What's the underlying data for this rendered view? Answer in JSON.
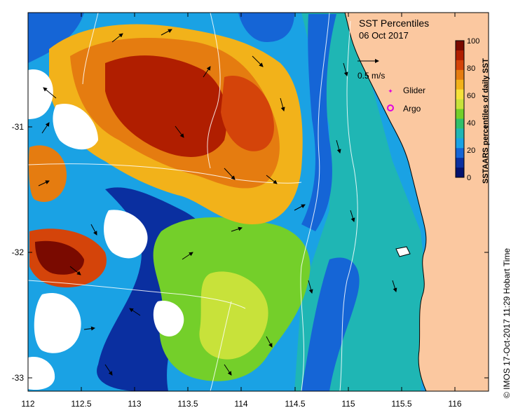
{
  "title": "SST Percentiles",
  "date": "06 Oct 2017",
  "credit": "© IMOS 17-Oct-2017 11:29 Hobart Time",
  "axes": {
    "lon_ticks": [
      "112",
      "112.5",
      "113",
      "113.5",
      "114",
      "114.5",
      "115",
      "115.5",
      "116"
    ],
    "lat_ticks": [
      "-31",
      "-32",
      "-33"
    ],
    "lon_range": [
      112,
      116.3
    ],
    "lat_range": [
      -30.1,
      -33.1
    ]
  },
  "colorbar": {
    "label": "SSTAARS percentiles of daily SST",
    "ticks": [
      "100",
      "80",
      "60",
      "40",
      "20",
      "0"
    ],
    "colors": [
      "#7a0a00",
      "#b01e00",
      "#d4440a",
      "#e57c10",
      "#f2b21a",
      "#f6e23a",
      "#c8e23a",
      "#74cf2a",
      "#2fc06a",
      "#1fb6b4",
      "#1aa2e4",
      "#1565d6",
      "#0a2fa0",
      "#03126e"
    ]
  },
  "legend": {
    "vector_label": "0.5 m/s",
    "glider_label": "Glider",
    "argo_label": "Argo"
  },
  "map_colors": {
    "land": "#fbc8a0",
    "no_data": "#ffffff"
  }
}
